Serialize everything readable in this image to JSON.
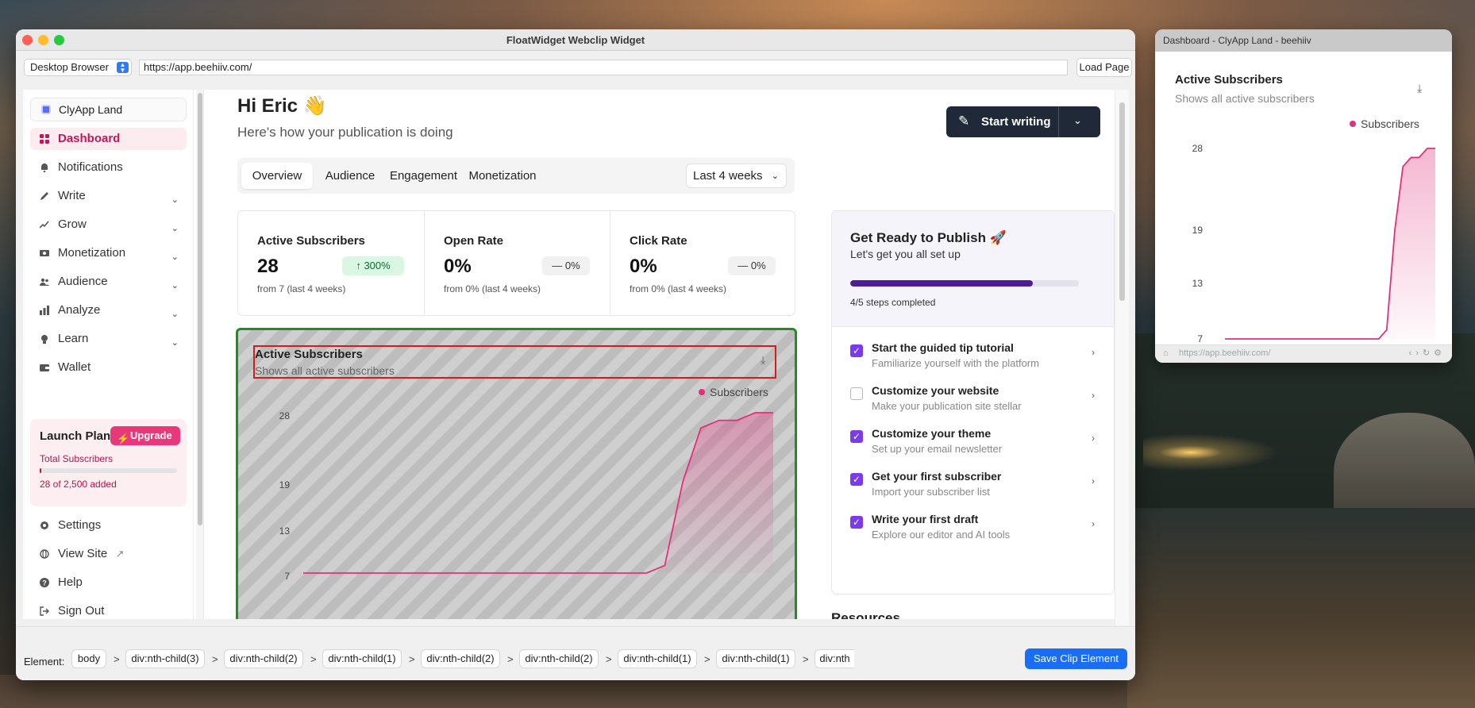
{
  "app": {
    "title": "FloatWidget Webclip Widget",
    "browser_mode": "Desktop Browser",
    "url": "https://app.beehiiv.com/",
    "load_button": "Load Page"
  },
  "sidebar": {
    "workspace": "ClyApp Land",
    "items": [
      {
        "label": "Dashboard",
        "icon": "grid-icon"
      },
      {
        "label": "Notifications",
        "icon": "bell-icon"
      },
      {
        "label": "Write",
        "icon": "pen-icon"
      },
      {
        "label": "Grow",
        "icon": "trend-icon"
      },
      {
        "label": "Monetization",
        "icon": "money-icon"
      },
      {
        "label": "Audience",
        "icon": "people-icon"
      },
      {
        "label": "Analyze",
        "icon": "bars-icon"
      },
      {
        "label": "Learn",
        "icon": "bulb-icon"
      },
      {
        "label": "Wallet",
        "icon": "wallet-icon"
      }
    ],
    "launch": {
      "title": "Launch Plan",
      "upgrade": "Upgrade",
      "subtitle": "Total Subscribers",
      "added": "28 of 2,500 added",
      "progress": 0.0112
    },
    "bottom": [
      {
        "label": "Settings",
        "icon": "gear-icon"
      },
      {
        "label": "View Site",
        "icon": "globe-icon"
      },
      {
        "label": "Help",
        "icon": "help-icon"
      },
      {
        "label": "Sign Out",
        "icon": "signout-icon"
      }
    ]
  },
  "header": {
    "greeting": "Hi Eric 👋",
    "subtitle": "Here's how your publication is doing",
    "start_writing": "Start writing"
  },
  "tabs": [
    "Overview",
    "Audience",
    "Engagement",
    "Monetization"
  ],
  "range": "Last 4 weeks",
  "stats": [
    {
      "title": "Active Subscribers",
      "value": "28",
      "badge": "300%",
      "badge_dir": "up",
      "note": "from 7 (last 4 weeks)"
    },
    {
      "title": "Open Rate",
      "value": "0%",
      "badge": "0%",
      "badge_dir": "flat",
      "note": "from 0% (last 4 weeks)"
    },
    {
      "title": "Click Rate",
      "value": "0%",
      "badge": "0%",
      "badge_dir": "flat",
      "note": "from 0% (last 4 weeks)"
    }
  ],
  "chart_card": {
    "title": "Active Subscribers",
    "subtitle": "Shows all active subscribers",
    "legend": "Subscribers",
    "ticks": [
      "28",
      "19",
      "13",
      "7"
    ]
  },
  "chart_data": {
    "type": "area",
    "title": "Active Subscribers",
    "subtitle": "Shows all active subscribers",
    "series": [
      {
        "name": "Subscribers",
        "values": [
          7,
          7,
          7,
          7,
          7,
          7,
          7,
          7,
          7,
          7,
          7,
          7,
          7,
          7,
          7,
          7,
          7,
          7,
          7,
          7,
          8,
          19,
          26,
          27,
          27,
          28,
          28
        ],
        "color": "#e0327a"
      }
    ],
    "yticks": [
      7,
      13,
      19,
      28
    ],
    "ylim": [
      7,
      28
    ],
    "legend": "top-right"
  },
  "ready": {
    "title": "Get Ready to Publish 🚀",
    "subtitle": "Let's get you all set up",
    "progress": 0.8,
    "steps_label": "4/5 steps completed",
    "steps": [
      {
        "title": "Start the guided tip tutorial",
        "sub": "Familiarize yourself with the platform",
        "done": true
      },
      {
        "title": "Customize your website",
        "sub": "Make your publication site stellar",
        "done": false
      },
      {
        "title": "Customize your theme",
        "sub": "Set up your email newsletter",
        "done": true
      },
      {
        "title": "Get your first subscriber",
        "sub": "Import your subscriber list",
        "done": true
      },
      {
        "title": "Write your first draft",
        "sub": "Explore our editor and AI tools",
        "done": true
      }
    ]
  },
  "resources": "Resources",
  "element_bar": {
    "label": "Element:",
    "crumbs": [
      "body",
      "div:nth-child(3)",
      "div:nth-child(2)",
      "div:nth-child(1)",
      "div:nth-child(2)",
      "div:nth-child(2)",
      "div:nth-child(1)",
      "div:nth-child(1)",
      "div:nth"
    ],
    "save": "Save Clip Element"
  },
  "preview": {
    "window_title": "Dashboard - ClyApp Land - beehiiv",
    "title": "Active Subscribers",
    "subtitle": "Shows all active subscribers",
    "legend": "Subscribers",
    "ticks": [
      "28",
      "19",
      "13",
      "7"
    ],
    "url": "https://app.beehiiv.com/"
  },
  "colors": {
    "accent": "#e0327a",
    "purple": "#7c3aed",
    "highlight": "#d11d1d",
    "selected": "#1f8f1f"
  }
}
